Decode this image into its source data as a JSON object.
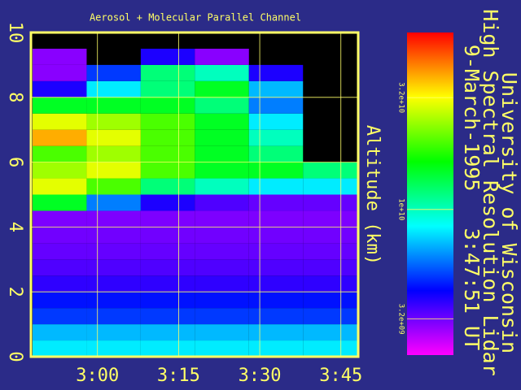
{
  "chart_data": {
    "type": "heatmap",
    "title": "Aerosol + Molecular Parallel Channel",
    "y_label": "Altitude (km)",
    "annotations": [
      "University of Wisconsin",
      "High Spectral Resolution Lidar",
      "9-March-1995   3:47:51 UT"
    ],
    "x_edges": [
      168,
      178,
      188,
      198,
      208,
      218,
      228
    ],
    "y_edges": [
      0,
      0.5,
      1,
      1.5,
      2,
      2.5,
      3,
      3.5,
      4,
      4.5,
      5,
      5.5,
      6,
      6.5,
      7,
      7.5,
      8,
      8.5,
      9,
      9.5,
      10
    ],
    "z": [
      [
        8000000000.0,
        8000000000.0,
        8000000000.0,
        8000000000.0,
        8000000000.0,
        8000000000.0
      ],
      [
        7000000000.0,
        7000000000.0,
        7000000000.0,
        7000000000.0,
        7000000000.0,
        7000000000.0
      ],
      [
        5000000000.0,
        5000000000.0,
        5000000000.0,
        5000000000.0,
        5000000000.0,
        5000000000.0
      ],
      [
        4500000000.0,
        4500000000.0,
        4500000000.0,
        4500000000.0,
        4500000000.0,
        4500000000.0
      ],
      [
        3800000000.0,
        3800000000.0,
        3800000000.0,
        3800000000.0,
        3800000000.0,
        3800000000.0
      ],
      [
        3500000000.0,
        3500000000.0,
        3500000000.0,
        3500000000.0,
        3500000000.0,
        3500000000.0
      ],
      [
        3300000000.0,
        3300000000.0,
        3300000000.0,
        3300000000.0,
        3300000000.0,
        3300000000.0
      ],
      [
        3200000000.0,
        3200000000.0,
        3200000000.0,
        3200000000.0,
        3200000000.0,
        3200000000.0
      ],
      [
        3100000000.0,
        3100000000.0,
        3100000000.0,
        3100000000.0,
        3100000000.0,
        3100000000.0
      ],
      [
        15000000000.0,
        6000000000.0,
        4000000000.0,
        3500000000.0,
        3300000000.0,
        3300000000.0
      ],
      [
        30000000000.0,
        20000000000.0,
        12000000000.0,
        10000000000.0,
        8000000000.0,
        8000000000.0
      ],
      [
        25000000000.0,
        30000000000.0,
        20000000000.0,
        15000000000.0,
        15000000000.0,
        12000000000.0
      ],
      [
        20000000000.0,
        25000000000.0,
        20000000000.0,
        15000000000.0,
        12000000000.0,
        null
      ],
      [
        40000000000.0,
        30000000000.0,
        20000000000.0,
        15000000000.0,
        10000000000.0,
        null
      ],
      [
        30000000000.0,
        25000000000.0,
        20000000000.0,
        15000000000.0,
        8000000000.0,
        null
      ],
      [
        15000000000.0,
        15000000000.0,
        15000000000.0,
        12000000000.0,
        6000000000.0,
        null
      ],
      [
        4000000000.0,
        8000000000.0,
        12000000000.0,
        15000000000.0,
        7000000000.0,
        null
      ],
      [
        3000000000.0,
        5000000000.0,
        12000000000.0,
        10000000000.0,
        4000000000.0,
        null
      ],
      [
        3000000000.0,
        null,
        4000000000.0,
        3000000000.0,
        null,
        null
      ],
      [
        null,
        null,
        null,
        null,
        null,
        null
      ]
    ],
    "xlim": [
      167.7,
      228.2
    ],
    "xticks": [
      {
        "value": 180,
        "label": "3:00"
      },
      {
        "value": 195,
        "label": "3:15"
      },
      {
        "value": 210,
        "label": "3:30"
      },
      {
        "value": 225,
        "label": "3:45"
      }
    ],
    "ylim": [
      0,
      10
    ],
    "yticks": [
      0,
      2,
      4,
      6,
      8,
      10
    ],
    "grid": true,
    "clim": [
      2200000000.0,
      63000000000.0
    ],
    "color_log": true,
    "cticks": [
      {
        "value": 32000000000.0,
        "label": "3.2e+10"
      },
      {
        "value": 10000000000.0,
        "label": "1e+10"
      },
      {
        "value": 3200000000.0,
        "label": "3.2e+09"
      }
    ],
    "colormap": [
      "#ff00ff",
      "#0000ff",
      "#00ffff",
      "#00ff00",
      "#ffff00",
      "#ff0000"
    ]
  }
}
